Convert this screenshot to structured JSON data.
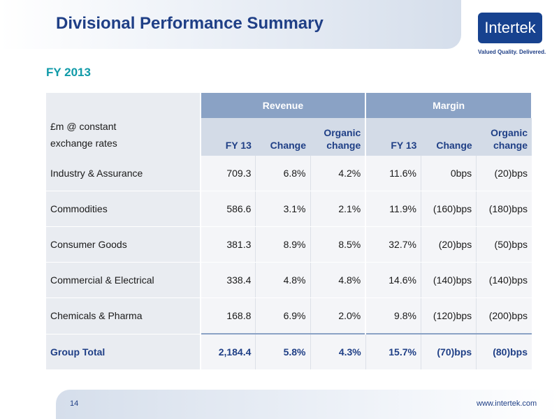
{
  "header": {
    "title": "Divisional Performance Summary",
    "logo_text": "Intertek",
    "tagline": "Valued Quality. Delivered."
  },
  "subtitle": "FY 2013",
  "table": {
    "label_header": [
      "£m @ constant",
      "exchange rates"
    ],
    "groups": [
      "Revenue",
      "Margin"
    ],
    "columns": [
      "FY 13",
      "Change",
      "Organic change",
      "FY 13",
      "Change",
      "Organic change"
    ],
    "rows": [
      {
        "name": "Industry & Assurance",
        "values": [
          "709.3",
          "6.8%",
          "4.2%",
          "11.6%",
          "0bps",
          "(20)bps"
        ]
      },
      {
        "name": "Commodities",
        "values": [
          "586.6",
          "3.1%",
          "2.1%",
          "11.9%",
          "(160)bps",
          "(180)bps"
        ]
      },
      {
        "name": "Consumer Goods",
        "values": [
          "381.3",
          "8.9%",
          "8.5%",
          "32.7%",
          "(20)bps",
          "(50)bps"
        ]
      },
      {
        "name": "Commercial & Electrical",
        "values": [
          "338.4",
          "4.8%",
          "4.8%",
          "14.6%",
          "(140)bps",
          "(140)bps"
        ]
      },
      {
        "name": "Chemicals & Pharma",
        "values": [
          "168.8",
          "6.9%",
          "2.0%",
          "9.8%",
          "(120)bps",
          "(200)bps"
        ]
      }
    ],
    "total": {
      "name": "Group Total",
      "values": [
        "2,184.4",
        "5.8%",
        "4.3%",
        "15.7%",
        "(70)bps",
        "(80)bps"
      ]
    }
  },
  "footer": {
    "page_number": "14",
    "url": "www.intertek.com"
  }
}
